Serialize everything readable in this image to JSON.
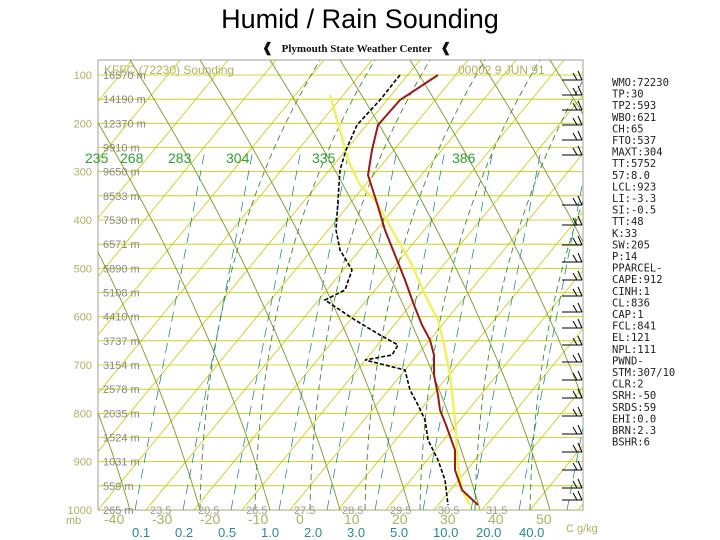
{
  "slide": {
    "title": "Humid / Rain Sounding"
  },
  "header": {
    "center_name": "Plymouth State Weather Center",
    "flag": "❰"
  },
  "plot": {
    "station": "KFFC (72230) Sounding",
    "datetime": "00002  9 JUN 91",
    "pressure_levels": [
      {
        "p": "100",
        "h": "16570 m"
      },
      {
        "p": "",
        "h": "14190 m"
      },
      {
        "p": "200",
        "h": "12370 m"
      },
      {
        "p": "",
        "h": "9910 m"
      },
      {
        "p": "300",
        "h": "9650 m"
      },
      {
        "p": "",
        "h": "8533 m"
      },
      {
        "p": "400",
        "h": "7530 m"
      },
      {
        "p": "",
        "h": "6571 m"
      },
      {
        "p": "500",
        "h": "5890 m"
      },
      {
        "p": "",
        "h": "5108 m"
      },
      {
        "p": "600",
        "h": "4410 m"
      },
      {
        "p": "",
        "h": "3737 m"
      },
      {
        "p": "700",
        "h": "3154 m"
      },
      {
        "p": "",
        "h": "2578 m"
      },
      {
        "p": "800",
        "h": "2035 m"
      },
      {
        "p": "",
        "h": "1524 m"
      },
      {
        "p": "900",
        "h": "1031 m"
      },
      {
        "p": "",
        "h": "559 m"
      },
      {
        "p": "1000",
        "h": "265 m"
      }
    ],
    "theta_labels": [
      "235",
      "268",
      "283",
      "304",
      "335",
      "386"
    ],
    "bottom_temps": [
      "-40",
      "-30",
      "-20",
      "-10",
      "0",
      "10",
      "20",
      "30",
      "40",
      "50"
    ],
    "bottom_mixing_ratios": [
      "0.1",
      "0.2",
      "0.5",
      "1.0",
      "2.0",
      "3.0",
      "5.0",
      "10.0",
      "20.0",
      "40.0"
    ],
    "bottom_thetae": [
      "23.5",
      "20.5",
      "26.5",
      "27.5",
      "28.5",
      "29.5",
      "30.5",
      "31.5"
    ],
    "axis_corner_left": "mb",
    "axis_corner_right": "C g/kg"
  },
  "indices": [
    "WMO:72230",
    "TP:30",
    "TP2:593",
    "WBO:621",
    "CH:65",
    "FTO:537",
    "MAXT:304",
    "TT:5752",
    "57:8.0",
    "LCL:923",
    "LI:-3.3",
    "SI:-0.5",
    "TT:48",
    "K:33",
    "SW:205",
    "P:14",
    "PPARCEL-",
    "CAPE:912",
    "CINH:1",
    "CL:836",
    "CAP:1",
    "FCL:841",
    "EL:121",
    "NPL:111",
    "PWND-",
    "STM:307/10",
    "CLR:2",
    "SRH:-50",
    "SRDS:59",
    "EHI:0.0",
    "BRN:2.3",
    "BSHR:6"
  ],
  "colors": {
    "temperature": "#9a1a1a",
    "dewpoint": "#000000",
    "parcel": "#f0f060",
    "isobar_isotherm": "#c8c800",
    "dry_adiabat": "#7a9a2a",
    "moist_adiabat": "#3a8a3a",
    "mixing_ratio": "#2a8a8a",
    "axis_labels": "#b0b060",
    "theta_label": "#30a030"
  }
}
